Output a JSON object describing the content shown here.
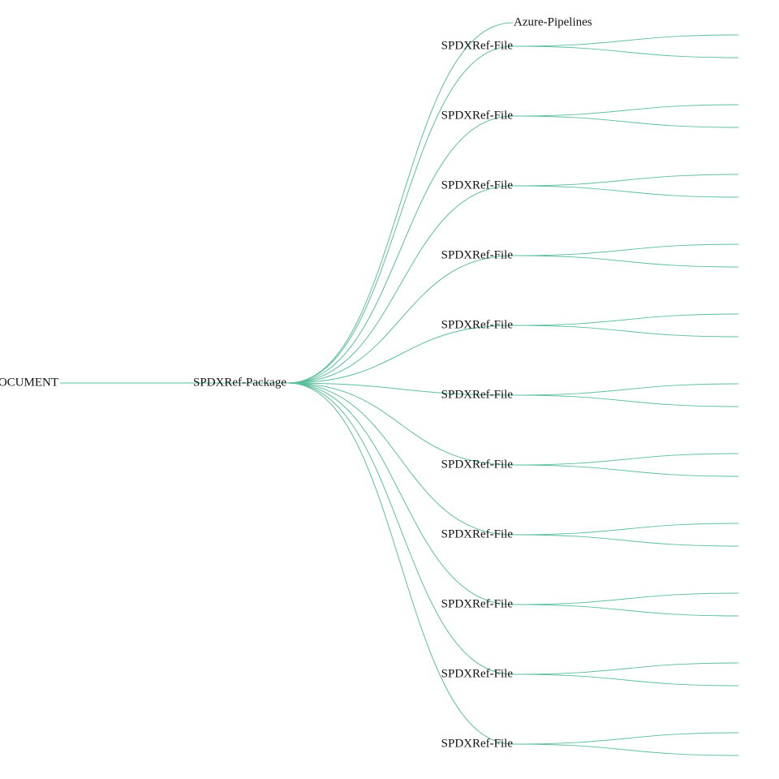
{
  "tree": {
    "label": "SPDXRef-DOCUMENT",
    "children": [
      {
        "label": "SPDXRef-Package",
        "children": [
          {
            "label": "Azure-Pipelines"
          },
          {
            "label": "SPDXRef-File"
          },
          {
            "label": "SPDXRef-File"
          },
          {
            "label": "SPDXRef-File"
          },
          {
            "label": "SPDXRef-File"
          },
          {
            "label": "SPDXRef-File"
          },
          {
            "label": "SPDXRef-File"
          },
          {
            "label": "SPDXRef-File"
          },
          {
            "label": "SPDXRef-File"
          },
          {
            "label": "SPDXRef-File"
          },
          {
            "label": "SPDXRef-File"
          },
          {
            "label": "SPDXRef-File"
          }
        ]
      }
    ]
  }
}
